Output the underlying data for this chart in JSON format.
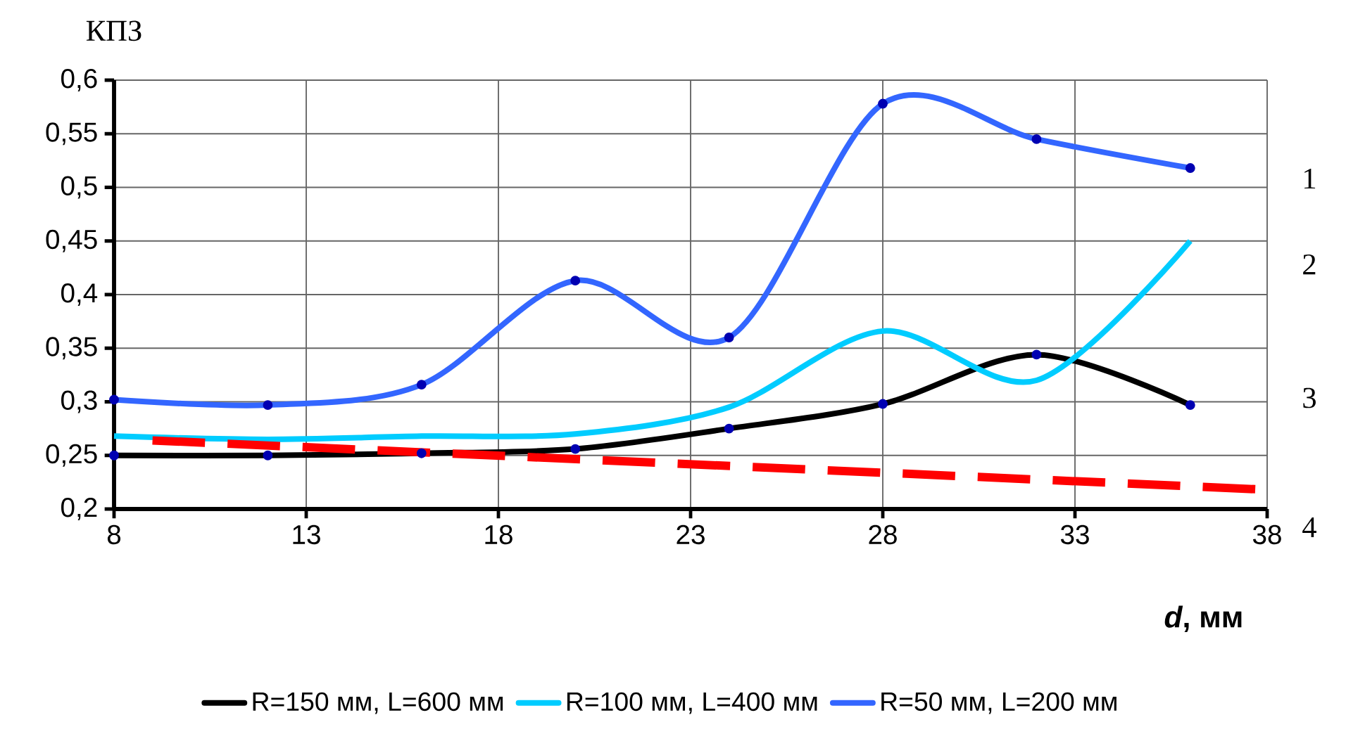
{
  "chart_data": {
    "type": "line",
    "xlabel": "*d*, мм",
    "ylabel": "КПЗ",
    "x": [
      8,
      12,
      16,
      20,
      24,
      28,
      32,
      36
    ],
    "series": [
      {
        "name": "R=150 мм, L=600 мм",
        "color": "#000000",
        "marker": "circle",
        "values": [
          0.25,
          0.25,
          0.252,
          0.256,
          0.275,
          0.298,
          0.344,
          0.297
        ]
      },
      {
        "name": "R=100 мм, L=400 мм",
        "color": "#00ccff",
        "marker": "none",
        "values": [
          0.268,
          0.265,
          0.268,
          0.27,
          0.295,
          0.366,
          0.32,
          0.45
        ]
      },
      {
        "name": "R=50 мм, L=200 мм",
        "color": "#3366ff",
        "marker": "circle",
        "values": [
          0.302,
          0.297,
          0.316,
          0.413,
          0.36,
          0.578,
          0.545,
          0.518
        ]
      },
      {
        "color": "#ff0000",
        "line_style": "dashed",
        "marker": "none",
        "x": [
          9,
          38
        ],
        "values": [
          0.264,
          0.218
        ]
      }
    ],
    "xlim": [
      8,
      38
    ],
    "xticks": [
      8,
      13,
      18,
      23,
      28,
      33,
      38
    ],
    "ylim": [
      0.2,
      0.6
    ],
    "yticks": [
      {
        "value": 0.2,
        "label": "0,2"
      },
      {
        "value": 0.25,
        "label": "0,25"
      },
      {
        "value": 0.3,
        "label": "0,3"
      },
      {
        "value": 0.35,
        "label": "0,35"
      },
      {
        "value": 0.4,
        "label": "0,4"
      },
      {
        "value": 0.45,
        "label": "0,45"
      },
      {
        "value": 0.5,
        "label": "0,5"
      },
      {
        "value": 0.55,
        "label": "0,55"
      },
      {
        "value": 0.6,
        "label": "0,6"
      }
    ],
    "annotations": [
      "1",
      "2",
      "3",
      "4"
    ],
    "grid": true,
    "legend": "bottom"
  }
}
